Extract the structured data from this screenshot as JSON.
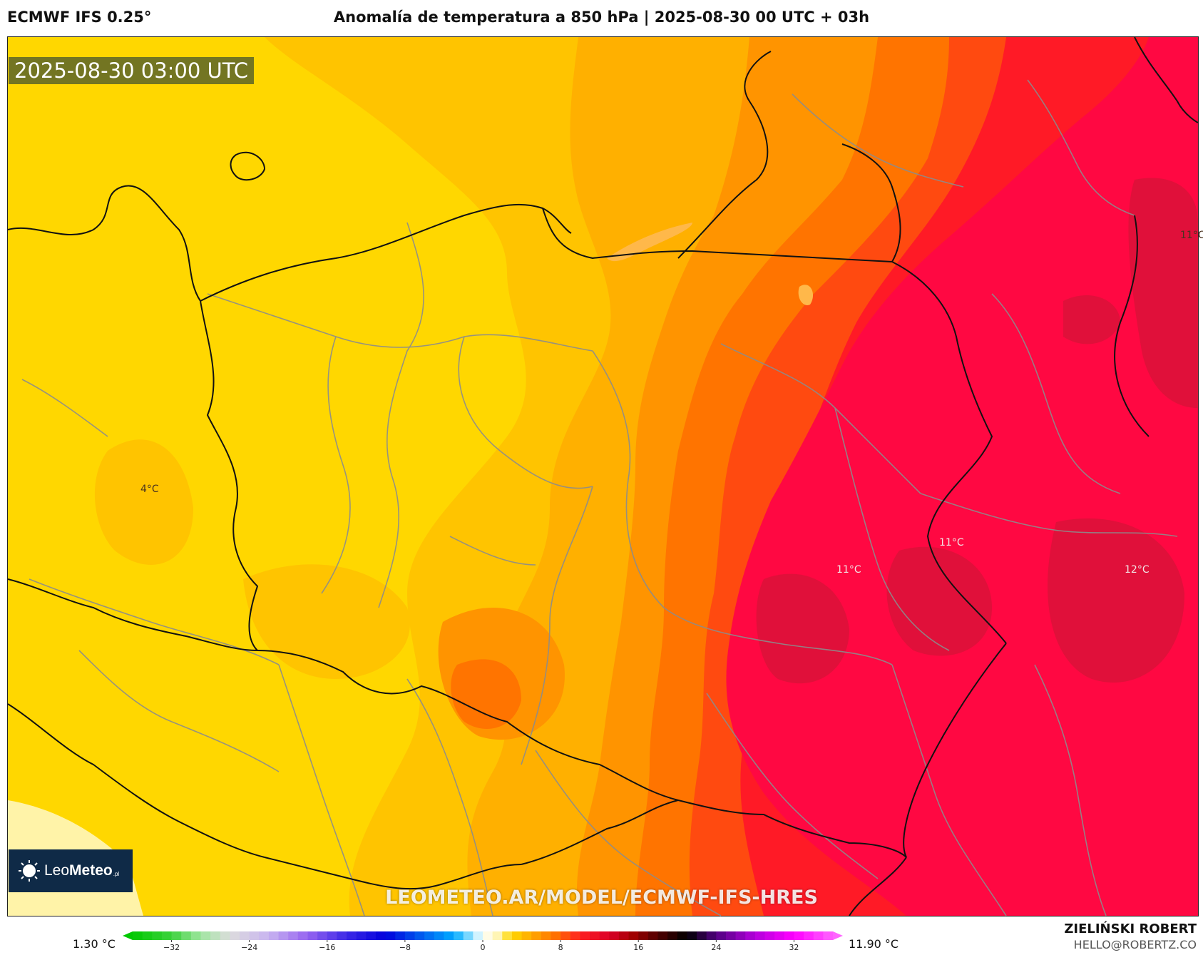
{
  "header": {
    "model": "ECMWF IFS 0.25°",
    "title": "Anomalía de temperatura a 850 hPa | 2025-08-30 00 UTC + 03h"
  },
  "map": {
    "timestamp": "2025-08-30 03:00 UTC",
    "watermark": "LEOMETEO.AR/MODEL/ECMWF-IFS-HRES",
    "logo": {
      "brand_light": "Leo",
      "brand_bold": "Meteo",
      "tld": ".pl",
      "icon": "sun-icon"
    },
    "contour_labels": [
      {
        "text": "4°C",
        "tone": "dark"
      },
      {
        "text": "11°C",
        "tone": "dark"
      },
      {
        "text": "11°C",
        "tone": "light"
      },
      {
        "text": "11°C",
        "tone": "light"
      },
      {
        "text": "12°C",
        "tone": "light"
      }
    ],
    "colors": {
      "light_yellow": "#fff3a8",
      "yellow": "#ffd700",
      "gold": "#ffc400",
      "amber": "#ffb000",
      "orange": "#ff9400",
      "dark_orange": "#ff7400",
      "red_orange": "#ff4a10",
      "red": "#ff1a26",
      "crimson": "#ff0842",
      "dark_crimson": "#e0103a"
    }
  },
  "colorbar": {
    "min_label": "1.30 °C",
    "max_label": "11.90 °C",
    "ticks": [
      "−32",
      "−24",
      "−16",
      "−8",
      "0",
      "8",
      "16",
      "24",
      "32"
    ],
    "range": [
      -36,
      36
    ],
    "stops": [
      {
        "value": -36,
        "color": "#00c800"
      },
      {
        "value": -32,
        "color": "#3cd23c"
      },
      {
        "value": -29,
        "color": "#a0e6a0"
      },
      {
        "value": -26,
        "color": "#dcdcdc"
      },
      {
        "value": -22,
        "color": "#c8b4f0"
      },
      {
        "value": -18,
        "color": "#9664f0"
      },
      {
        "value": -14,
        "color": "#3c28e6"
      },
      {
        "value": -10,
        "color": "#0000dc"
      },
      {
        "value": -6,
        "color": "#0064f0"
      },
      {
        "value": -3,
        "color": "#00aaff"
      },
      {
        "value": -1,
        "color": "#a0e6ff"
      },
      {
        "value": 0,
        "color": "#ffffff"
      },
      {
        "value": 1.5,
        "color": "#fff5b4"
      },
      {
        "value": 3,
        "color": "#ffd700"
      },
      {
        "value": 5,
        "color": "#ffaa00"
      },
      {
        "value": 7.5,
        "color": "#ff7000"
      },
      {
        "value": 10,
        "color": "#ff2020"
      },
      {
        "value": 13,
        "color": "#dc0028"
      },
      {
        "value": 15.5,
        "color": "#a00000"
      },
      {
        "value": 18,
        "color": "#500000"
      },
      {
        "value": 21,
        "color": "#000000"
      },
      {
        "value": 24,
        "color": "#500080"
      },
      {
        "value": 28,
        "color": "#b400dc"
      },
      {
        "value": 32,
        "color": "#ff00ff"
      },
      {
        "value": 36,
        "color": "#ff64ff"
      }
    ]
  },
  "credits": {
    "author": "ZIELIŃSKI ROBERT",
    "email": "HELLO@ROBERTZ.CO"
  }
}
